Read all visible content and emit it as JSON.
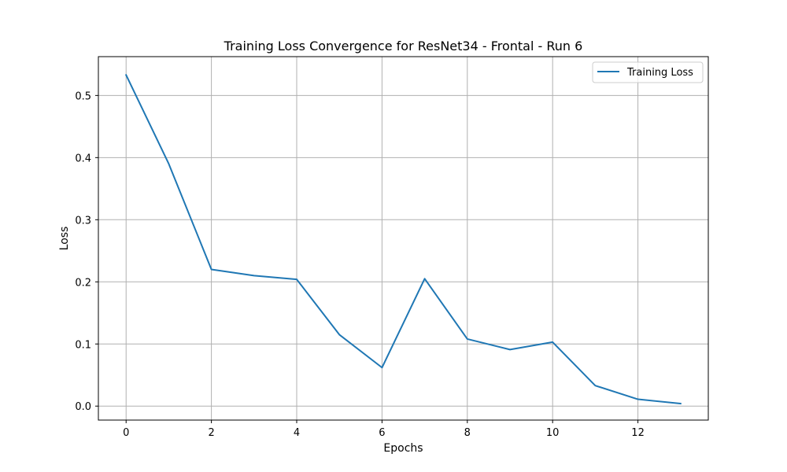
{
  "chart_data": {
    "type": "line",
    "title": "Training Loss Convergence for ResNet34 - Frontal - Run 6",
    "xlabel": "Epochs",
    "ylabel": "Loss",
    "xlim": [
      -0.65,
      13.65
    ],
    "ylim": [
      -0.0225,
      0.5625
    ],
    "grid": true,
    "legend_position": "top-right",
    "x_ticks": [
      0,
      2,
      4,
      6,
      8,
      10,
      12
    ],
    "x_tick_labels": [
      "0",
      "2",
      "4",
      "6",
      "8",
      "10",
      "12"
    ],
    "y_ticks": [
      0.0,
      0.1,
      0.2,
      0.3,
      0.4,
      0.5
    ],
    "y_tick_labels": [
      "0.0",
      "0.1",
      "0.2",
      "0.3",
      "0.4",
      "0.5"
    ],
    "series": [
      {
        "name": "Training Loss",
        "color": "#1f77b4",
        "x": [
          0,
          1,
          2,
          3,
          4,
          5,
          6,
          7,
          8,
          9,
          10,
          11,
          12,
          13
        ],
        "y": [
          0.533,
          0.39,
          0.22,
          0.21,
          0.204,
          0.115,
          0.062,
          0.205,
          0.108,
          0.091,
          0.103,
          0.033,
          0.011,
          0.004
        ]
      }
    ]
  },
  "colors": {
    "grid": "#b0b0b0",
    "axes": "#000000",
    "legend_border": "#cccccc"
  }
}
